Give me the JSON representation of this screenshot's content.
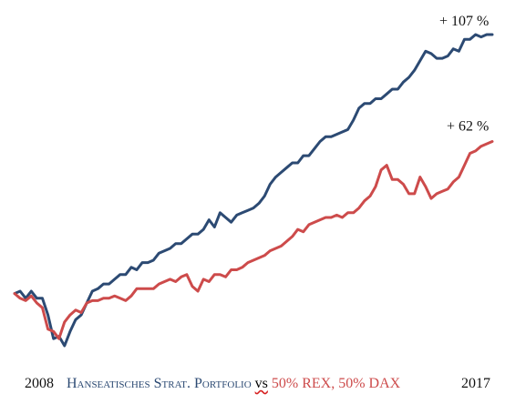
{
  "chart_data": {
    "type": "line",
    "title": "",
    "xlabel": "",
    "ylabel": "",
    "x_range": [
      "2008",
      "2017"
    ],
    "y_unit": "% cumulative change",
    "grid": false,
    "series": [
      {
        "name": "Hanseatisches Strat. Portfolio",
        "color": "#2c4a73",
        "end_label": "+ 107 %",
        "values": [
          -2,
          -1,
          -4,
          -1,
          -4,
          -4,
          -11,
          -21,
          -20,
          -24,
          -18,
          -13,
          -11,
          -6,
          -1,
          0,
          2,
          2,
          4,
          6,
          6,
          9,
          8,
          11,
          11,
          12,
          15,
          16,
          17,
          19,
          19,
          21,
          23,
          23,
          25,
          29,
          26,
          32,
          30,
          28,
          31,
          32,
          33,
          34,
          36,
          39,
          44,
          47,
          49,
          51,
          53,
          53,
          56,
          56,
          59,
          62,
          64,
          64,
          65,
          66,
          67,
          71,
          76,
          78,
          78,
          80,
          80,
          82,
          84,
          84,
          87,
          89,
          92,
          96,
          100,
          99,
          97,
          97,
          98,
          101,
          100,
          105,
          105,
          107,
          106,
          107,
          107
        ]
      },
      {
        "name": "50% REX, 50% DAX",
        "color": "#cd4b4b",
        "end_label": "+ 62 %",
        "values": [
          -2,
          -4,
          -5,
          -3,
          -6,
          -8,
          -17,
          -18,
          -21,
          -14,
          -11,
          -9,
          -10,
          -6,
          -5,
          -5,
          -4,
          -4,
          -3,
          -4,
          -5,
          -3,
          0,
          0,
          0,
          0,
          2,
          3,
          4,
          3,
          5,
          6,
          1,
          -1,
          4,
          3,
          6,
          6,
          5,
          8,
          8,
          9,
          11,
          12,
          13,
          14,
          16,
          17,
          18,
          20,
          22,
          25,
          24,
          27,
          28,
          29,
          30,
          30,
          31,
          30,
          32,
          32,
          34,
          37,
          39,
          43,
          50,
          52,
          46,
          46,
          44,
          40,
          40,
          47,
          43,
          38,
          40,
          41,
          42,
          45,
          47,
          52,
          57,
          58,
          60,
          61,
          62
        ]
      }
    ]
  },
  "footer": {
    "year_start": "2008",
    "year_end": "2017",
    "series1_label": "Hanseatisches Strat. Portfolio",
    "vs": "vs",
    "separator": ",",
    "series2_part1": "50% REX",
    "series2_part2": "50% DAX",
    "series1_color": "#2c4a73",
    "series2_color": "#cd4b4b"
  }
}
